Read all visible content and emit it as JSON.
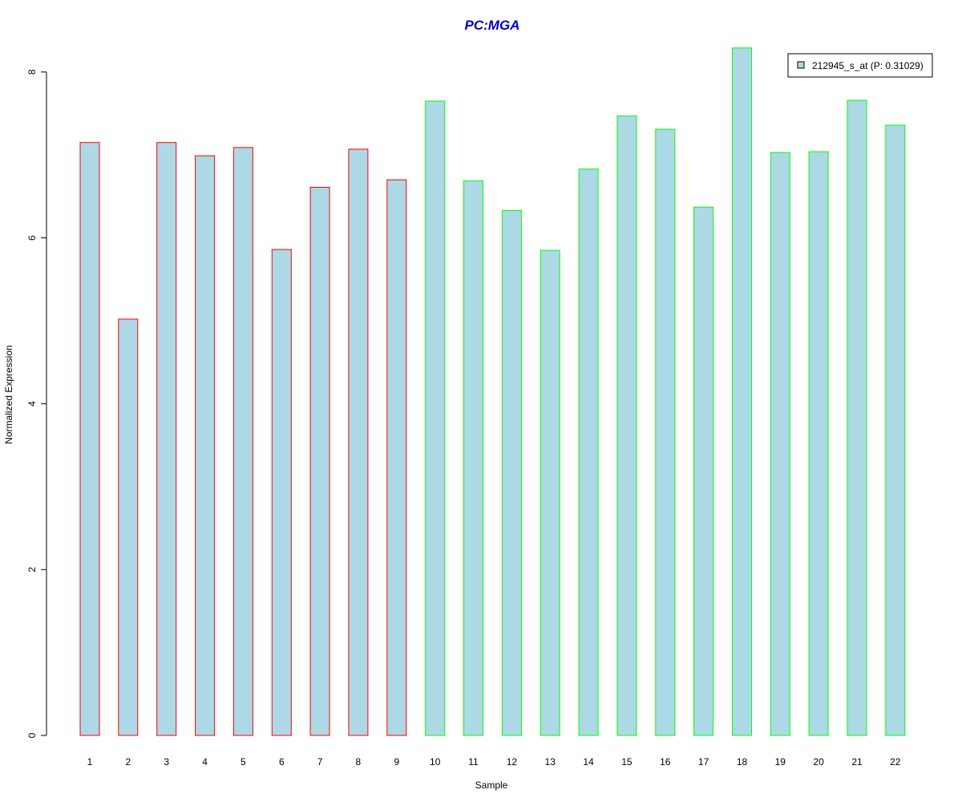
{
  "chart_data": {
    "type": "bar",
    "title": "PC:MGA",
    "xlabel": "Sample",
    "ylabel": "Normalized Expression",
    "categories": [
      "1",
      "2",
      "3",
      "4",
      "5",
      "6",
      "7",
      "8",
      "9",
      "10",
      "11",
      "12",
      "13",
      "14",
      "15",
      "16",
      "17",
      "18",
      "19",
      "20",
      "21",
      "22"
    ],
    "series": [
      {
        "name": "212945_s_at (P: 0.31029)",
        "values": [
          7.15,
          5.02,
          7.15,
          6.99,
          7.09,
          5.86,
          6.61,
          7.07,
          6.7,
          7.65,
          6.69,
          6.33,
          5.85,
          6.83,
          7.47,
          7.31,
          6.37,
          8.29,
          7.03,
          7.04,
          7.66,
          7.36
        ]
      }
    ],
    "groups": [
      1,
      1,
      1,
      1,
      1,
      1,
      1,
      1,
      1,
      2,
      2,
      2,
      2,
      2,
      2,
      2,
      2,
      2,
      2,
      2,
      2,
      2
    ],
    "yticks": [
      0,
      2,
      4,
      6,
      8
    ],
    "ylim": [
      0,
      8.3
    ],
    "grid": false,
    "legend_position": "top-right",
    "colors": {
      "fill": "#add8e6",
      "group1_border": "#ff0000",
      "group2_border": "#00ff00",
      "title": "#0000cc",
      "axis": "#000000"
    }
  }
}
